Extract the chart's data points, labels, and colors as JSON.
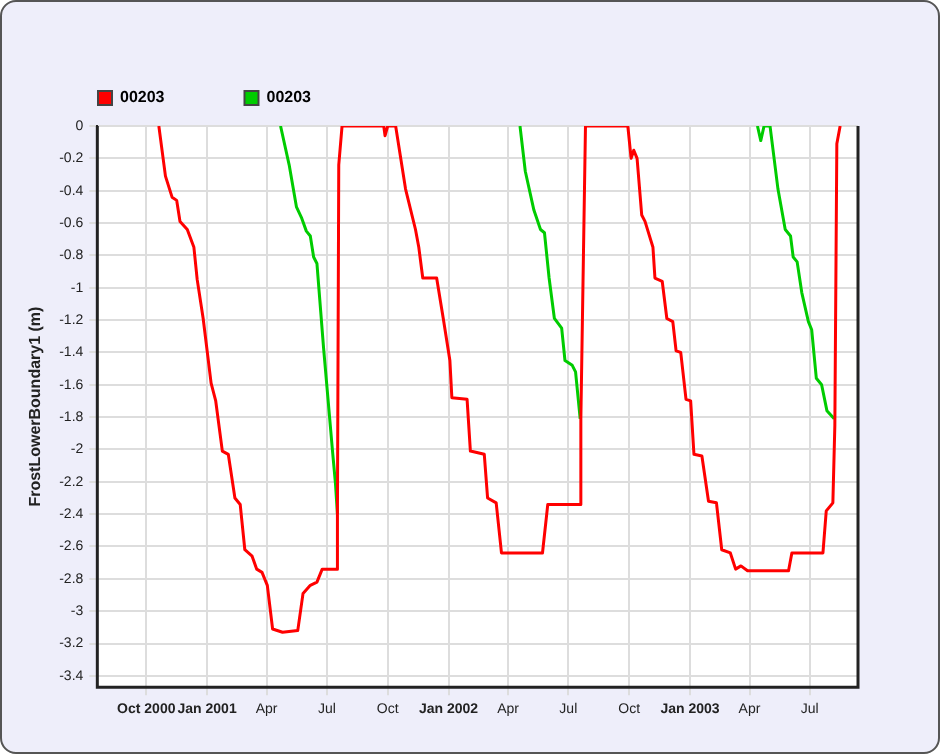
{
  "chart_data": {
    "type": "line",
    "ylabel": "FrostLowerBoundary1 (m)",
    "legend": "top left",
    "grid": true,
    "marker": "none",
    "line_style": "solid",
    "xlim": [
      "2000-07-19",
      "2003-09-12"
    ],
    "xticks": [
      {
        "value": "2000-10-01",
        "label": "Oct 2000"
      },
      {
        "value": "2001-01-01",
        "label": "Jan 2001"
      },
      {
        "value": "2001-04-01",
        "label": "Apr"
      },
      {
        "value": "2001-07-01",
        "label": "Jul"
      },
      {
        "value": "2001-10-01",
        "label": "Oct"
      },
      {
        "value": "2002-01-01",
        "label": "Jan 2002"
      },
      {
        "value": "2002-04-01",
        "label": "Apr"
      },
      {
        "value": "2002-07-01",
        "label": "Jul"
      },
      {
        "value": "2002-10-01",
        "label": "Oct"
      },
      {
        "value": "2003-01-01",
        "label": "Jan 2003"
      },
      {
        "value": "2003-04-01",
        "label": "Apr"
      },
      {
        "value": "2003-07-01",
        "label": "Jul"
      }
    ],
    "ylim": [
      -3.47,
      0
    ],
    "yticks": [
      0,
      -0.2,
      -0.4,
      -0.6,
      -0.8,
      -1,
      -1.2,
      -1.4,
      -1.6,
      -1.8,
      -2,
      -2.2,
      -2.4,
      -2.6,
      -2.8,
      -3,
      -3.2,
      -3.4
    ],
    "series": [
      {
        "name": "00203",
        "color": "#ff0000",
        "x": [
          "2000-10-20",
          "2000-10-30",
          "2000-11-09",
          "2000-11-16",
          "2000-11-21",
          "2000-12-02",
          "2000-12-12",
          "2000-12-17",
          "2000-12-26",
          "2001-01-07",
          "2001-01-14",
          "2001-01-24",
          "2001-02-02",
          "2001-02-12",
          "2001-02-20",
          "2001-02-27",
          "2001-03-10",
          "2001-03-17",
          "2001-03-25",
          "2001-04-02",
          "2001-04-10",
          "2001-04-25",
          "2001-05-18",
          "2001-05-26",
          "2001-06-06",
          "2001-06-16",
          "2001-06-24",
          "2001-07-15",
          "2001-07-17",
          "2001-07-19",
          "2001-07-24",
          "2001-09-25",
          "2001-09-27",
          "2001-10-01",
          "2001-10-13",
          "2001-10-28",
          "2001-11-12",
          "2001-11-17",
          "2001-11-23",
          "2001-12-14",
          "2001-12-24",
          "2002-01-03",
          "2002-01-06",
          "2002-01-29",
          "2002-02-03",
          "2002-02-24",
          "2002-03-01",
          "2002-03-14",
          "2002-03-22",
          "2002-05-23",
          "2002-05-31",
          "2002-07-19",
          "2002-07-20",
          "2002-07-27",
          "2002-09-29",
          "2002-10-04",
          "2002-10-08",
          "2002-10-13",
          "2002-10-20",
          "2002-10-25",
          "2002-11-06",
          "2002-11-09",
          "2002-11-20",
          "2002-11-27",
          "2002-12-06",
          "2002-12-11",
          "2002-12-18",
          "2002-12-26",
          "2003-01-02",
          "2003-01-07",
          "2003-01-19",
          "2003-01-29",
          "2003-02-10",
          "2003-02-18",
          "2003-03-03",
          "2003-03-11",
          "2003-03-19",
          "2003-03-29",
          "2003-05-30",
          "2003-06-04",
          "2003-07-21",
          "2003-07-26",
          "2003-08-05",
          "2003-08-08",
          "2003-08-11",
          "2003-08-16"
        ],
        "values": [
          0,
          -0.31,
          -0.44,
          -0.46,
          -0.59,
          -0.64,
          -0.75,
          -0.95,
          -1.19,
          -1.59,
          -1.7,
          -2.01,
          -2.03,
          -2.3,
          -2.34,
          -2.62,
          -2.66,
          -2.74,
          -2.76,
          -2.84,
          -3.11,
          -3.13,
          -3.12,
          -2.89,
          -2.84,
          -2.82,
          -2.74,
          -2.74,
          -2.4,
          -0.24,
          0,
          0,
          -0.06,
          0,
          0,
          -0.39,
          -0.64,
          -0.75,
          -0.94,
          -0.94,
          -1.19,
          -1.45,
          -1.68,
          -1.69,
          -2.01,
          -2.03,
          -2.3,
          -2.33,
          -2.64,
          -2.64,
          -2.34,
          -2.34,
          -1.81,
          0,
          0,
          -0.2,
          -0.15,
          -0.2,
          -0.55,
          -0.59,
          -0.75,
          -0.94,
          -0.96,
          -1.19,
          -1.21,
          -1.39,
          -1.4,
          -1.69,
          -1.7,
          -2.03,
          -2.04,
          -2.32,
          -2.33,
          -2.62,
          -2.64,
          -2.74,
          -2.72,
          -2.75,
          -2.75,
          -2.64,
          -2.64,
          -2.38,
          -2.33,
          -1.85,
          -0.11,
          0
        ]
      },
      {
        "name": "00203",
        "color": "#00cc00",
        "x": [
          "2001-04-22",
          "2001-05-05",
          "2001-05-16",
          "2001-05-24",
          "2001-05-31",
          "2001-06-06",
          "2001-06-11",
          "2001-06-16",
          "2001-06-26",
          "2001-07-10",
          "2001-07-14",
          "2001-07-17",
          "2001-10-01",
          "2002-04-19",
          "2002-04-27",
          "2002-05-10",
          "2002-05-20",
          "2002-05-26",
          "2002-06-02",
          "2002-06-10",
          "2002-06-21",
          "2002-06-26",
          "2002-07-07",
          "2002-07-12",
          "2002-07-19",
          "2002-10-01",
          "2003-04-13",
          "2003-04-18",
          "2003-04-23",
          "2003-05-02",
          "2003-05-14",
          "2003-05-25",
          "2003-06-02",
          "2003-06-06",
          "2003-06-12",
          "2003-06-19",
          "2003-06-29",
          "2003-07-04",
          "2003-07-11",
          "2003-07-19",
          "2003-07-27",
          "2003-08-07"
        ],
        "values": [
          0,
          -0.24,
          -0.5,
          -0.57,
          -0.65,
          -0.68,
          -0.81,
          -0.85,
          -1.37,
          -2.03,
          -2.21,
          -2.4,
          null,
          0,
          -0.28,
          -0.52,
          -0.64,
          -0.66,
          -0.94,
          -1.19,
          -1.25,
          -1.45,
          -1.48,
          -1.52,
          -1.81,
          null,
          0,
          -0.09,
          0,
          0,
          -0.39,
          -0.64,
          -0.68,
          -0.81,
          -0.84,
          -1.03,
          -1.21,
          -1.26,
          -1.56,
          -1.6,
          -1.76,
          -1.81
        ]
      }
    ]
  }
}
